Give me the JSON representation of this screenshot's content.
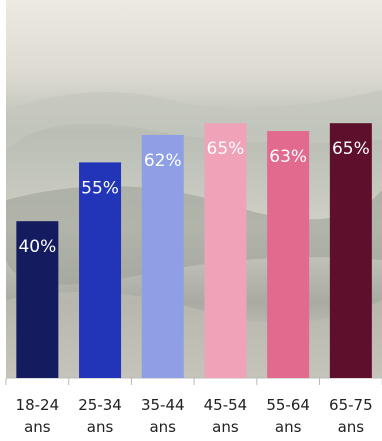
{
  "chart_data": {
    "type": "bar",
    "categories": [
      "18-24 ans",
      "25-34 ans",
      "35-44 ans",
      "45-54 ans",
      "55-64 ans",
      "65-75 ans"
    ],
    "values": [
      40,
      55,
      62,
      65,
      63,
      65
    ],
    "value_labels": [
      "40%",
      "55%",
      "62%",
      "65%",
      "63%",
      "65%"
    ],
    "colors": [
      "#141b5f",
      "#2234b8",
      "#8e9fe6",
      "#f0a2b9",
      "#e36a8f",
      "#5e0f2b"
    ]
  }
}
